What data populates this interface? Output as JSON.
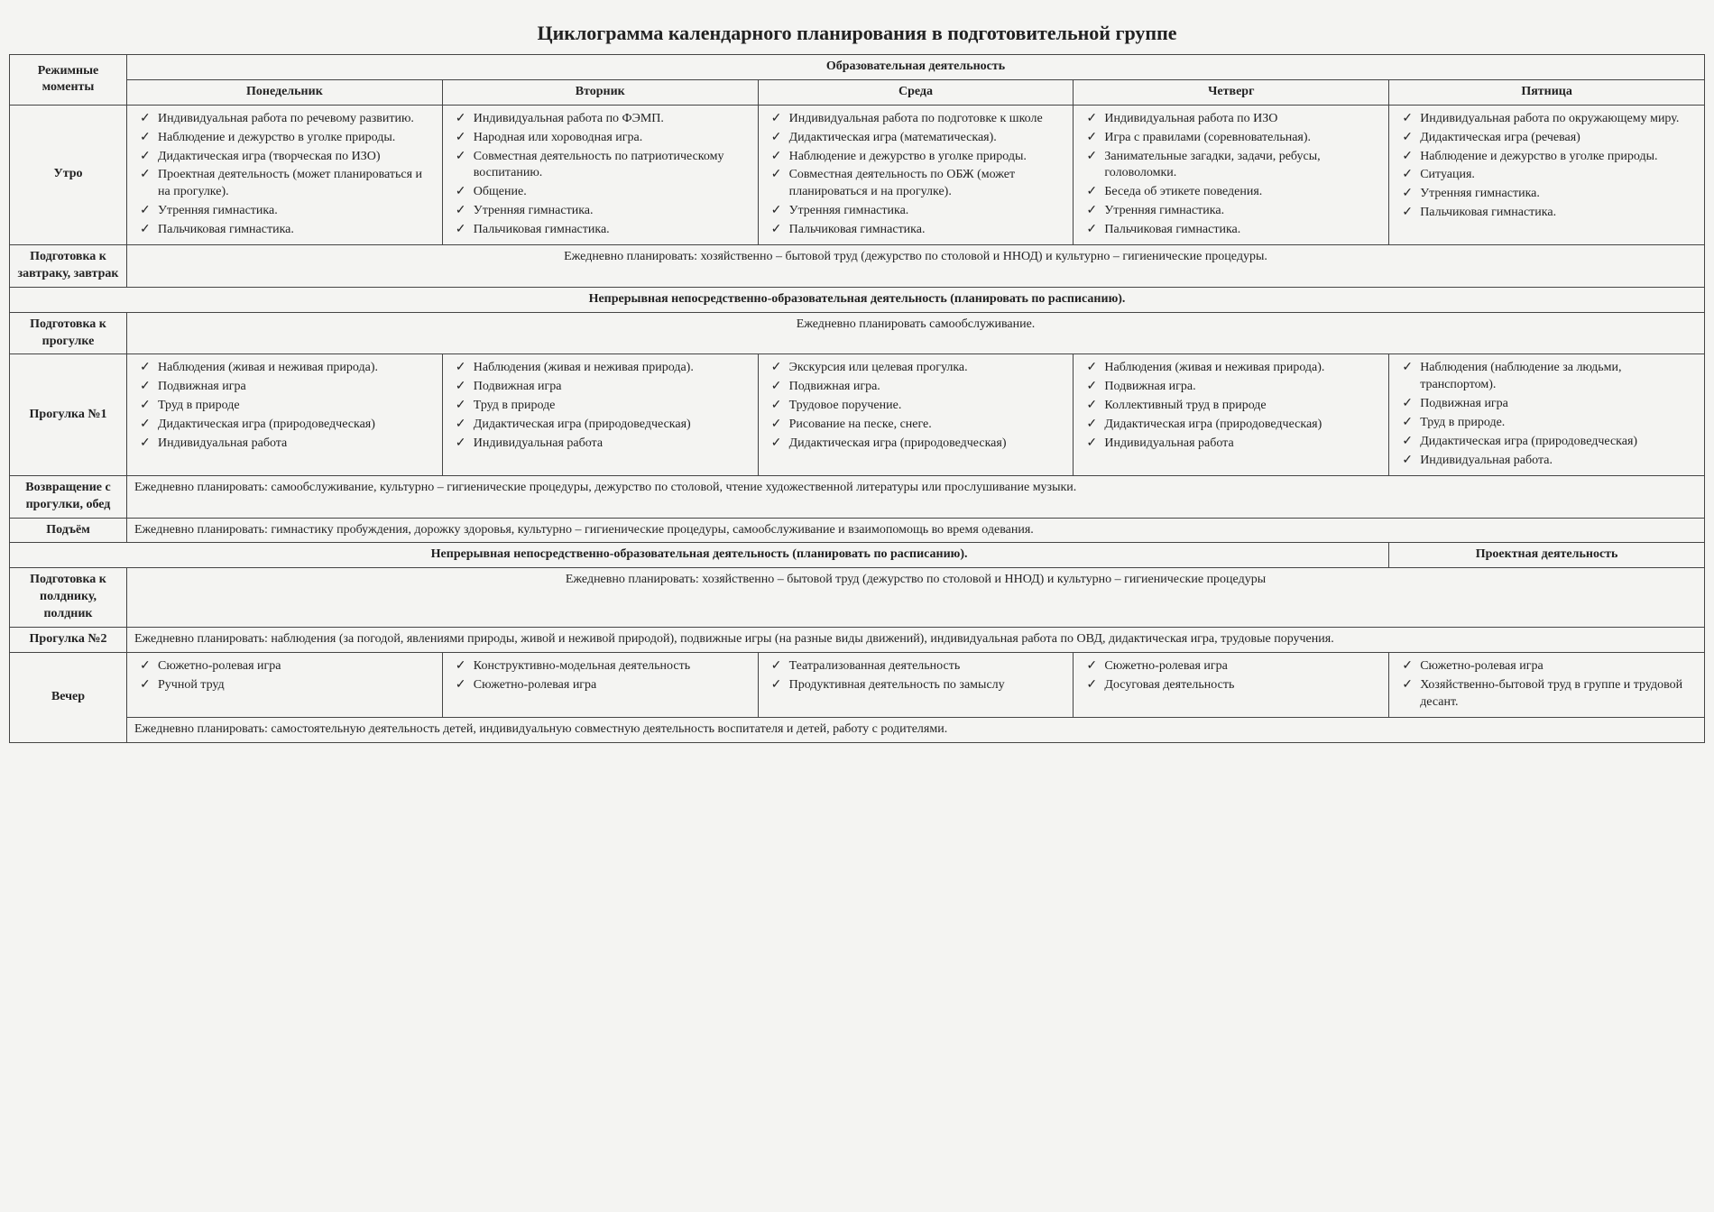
{
  "title": "Циклограмма календарного планирования в подготовительной группе",
  "headers": {
    "rowhead": "Режимные моменты",
    "edu": "Образовательная деятельность",
    "days": [
      "Понедельник",
      "Вторник",
      "Среда",
      "Четверг",
      "Пятница"
    ]
  },
  "rows": {
    "morning": {
      "label": "Утро",
      "cells": [
        [
          "Индивидуальная работа по речевому развитию.",
          "Наблюдение и дежурство в уголке природы.",
          "Дидактическая игра (творческая по ИЗО)",
          "Проектная деятельность (может планироваться и на прогулке).",
          "Утренняя гимнастика.",
          "Пальчиковая гимнастика."
        ],
        [
          "Индивидуальная работа по ФЭМП.",
          "Народная или хороводная игра.",
          "Совместная деятельность по патриотическому воспитанию.",
          "Общение.",
          "Утренняя гимнастика.",
          "Пальчиковая гимнастика."
        ],
        [
          "Индивидуальная работа по подготовке к школе",
          "Дидактическая игра (математическая).",
          "Наблюдение и дежурство в уголке природы.",
          "Совместная деятельность по ОБЖ (может планироваться и на прогулке).",
          "Утренняя гимнастика.",
          "Пальчиковая гимнастика."
        ],
        [
          "Индивидуальная работа по ИЗО",
          "Игра с правилами (соревновательная).",
          "Занимательные загадки, задачи, ребусы, головоломки.",
          "Беседа об этикете поведения.",
          "Утренняя гимнастика.",
          "Пальчиковая гимнастика."
        ],
        [
          "Индивидуальная работа по окружающему миру.",
          "Дидактическая игра (речевая)",
          "Наблюдение и дежурство в уголке природы.",
          "Ситуация.",
          "Утренняя гимнастика.",
          "Пальчиковая гимнастика."
        ]
      ]
    },
    "breakfast": {
      "label": "Подготовка к завтраку, завтрак",
      "text": "Ежедневно планировать: хозяйственно – бытовой труд (дежурство по столовой и ННОД) и культурно – гигиенические процедуры."
    },
    "nnod1": "Непрерывная непосредственно-образовательная деятельность (планировать по расписанию).",
    "walkprep": {
      "label": "Подготовка к прогулке",
      "text": "Ежедневно планировать самообслуживание."
    },
    "walk1": {
      "label": "Прогулка №1",
      "cells": [
        [
          "Наблюдения (живая и неживая природа).",
          "Подвижная игра",
          "Труд в природе",
          "Дидактическая игра (природоведческая)",
          "Индивидуальная работа"
        ],
        [
          "Наблюдения (живая и неживая природа).",
          "Подвижная игра",
          "Труд в природе",
          "Дидактическая игра (природоведческая)",
          "Индивидуальная работа"
        ],
        [
          "Экскурсия или целевая прогулка.",
          "Подвижная игра.",
          "Трудовое поручение.",
          "Рисование на песке, снеге.",
          "Дидактическая игра (природоведческая)"
        ],
        [
          "Наблюдения (живая и неживая природа).",
          "Подвижная игра.",
          "Коллективный труд в природе",
          "Дидактическая игра (природоведческая)",
          "Индивидуальная работа"
        ],
        [
          "Наблюдения (наблюдение за людьми, транспортом).",
          "Подвижная игра",
          "Труд в природе.",
          "Дидактическая игра (природоведческая)",
          "Индивидуальная работа."
        ]
      ]
    },
    "returnlunch": {
      "label": "Возвращение с прогулки, обед",
      "text": "Ежедневно планировать: самообслуживание, культурно – гигиенические процедуры, дежурство по столовой, чтение художественной литературы или прослушивание музыки."
    },
    "wake": {
      "label": "Подъём",
      "text": "Ежедневно планировать: гимнастику пробуждения, дорожку здоровья, культурно – гигиенические процедуры, самообслуживание и взаимопомощь во время одевания."
    },
    "nnod2": {
      "main": "Непрерывная непосредственно-образовательная деятельность (планировать по расписанию).",
      "side": "Проектная деятельность"
    },
    "snack": {
      "label": "Подготовка к полднику, полдник",
      "text": "Ежедневно планировать: хозяйственно – бытовой труд (дежурство по столовой и ННОД) и культурно – гигиенические процедуры"
    },
    "walk2": {
      "label": "Прогулка №2",
      "text": "Ежедневно планировать: наблюдения (за погодой, явлениями природы, живой и неживой природой), подвижные игры (на разные виды движений), индивидуальная работа по ОВД, дидактическая игра, трудовые поручения."
    },
    "evening": {
      "label": "Вечер",
      "cells": [
        [
          "Сюжетно-ролевая игра",
          "Ручной труд"
        ],
        [
          "Конструктивно-модельная деятельность",
          "Сюжетно-ролевая игра"
        ],
        [
          "Театрализованная деятельность",
          "Продуктивная деятельность по замыслу"
        ],
        [
          "Сюжетно-ролевая игра",
          "Досуговая деятельность"
        ],
        [
          "Сюжетно-ролевая игра",
          "Хозяйственно-бытовой труд в группе и трудовой десант."
        ]
      ],
      "footer": "Ежедневно планировать: самостоятельную деятельность детей, индивидуальную совместную деятельность воспитателя и детей, работу с родителями."
    }
  },
  "style": {
    "font_family": "Times New Roman",
    "title_fontsize": 22,
    "body_fontsize": 14,
    "border_color": "#444444",
    "background_color": "#f4f4f2",
    "text_color": "#222222",
    "check_glyph": "✓"
  }
}
